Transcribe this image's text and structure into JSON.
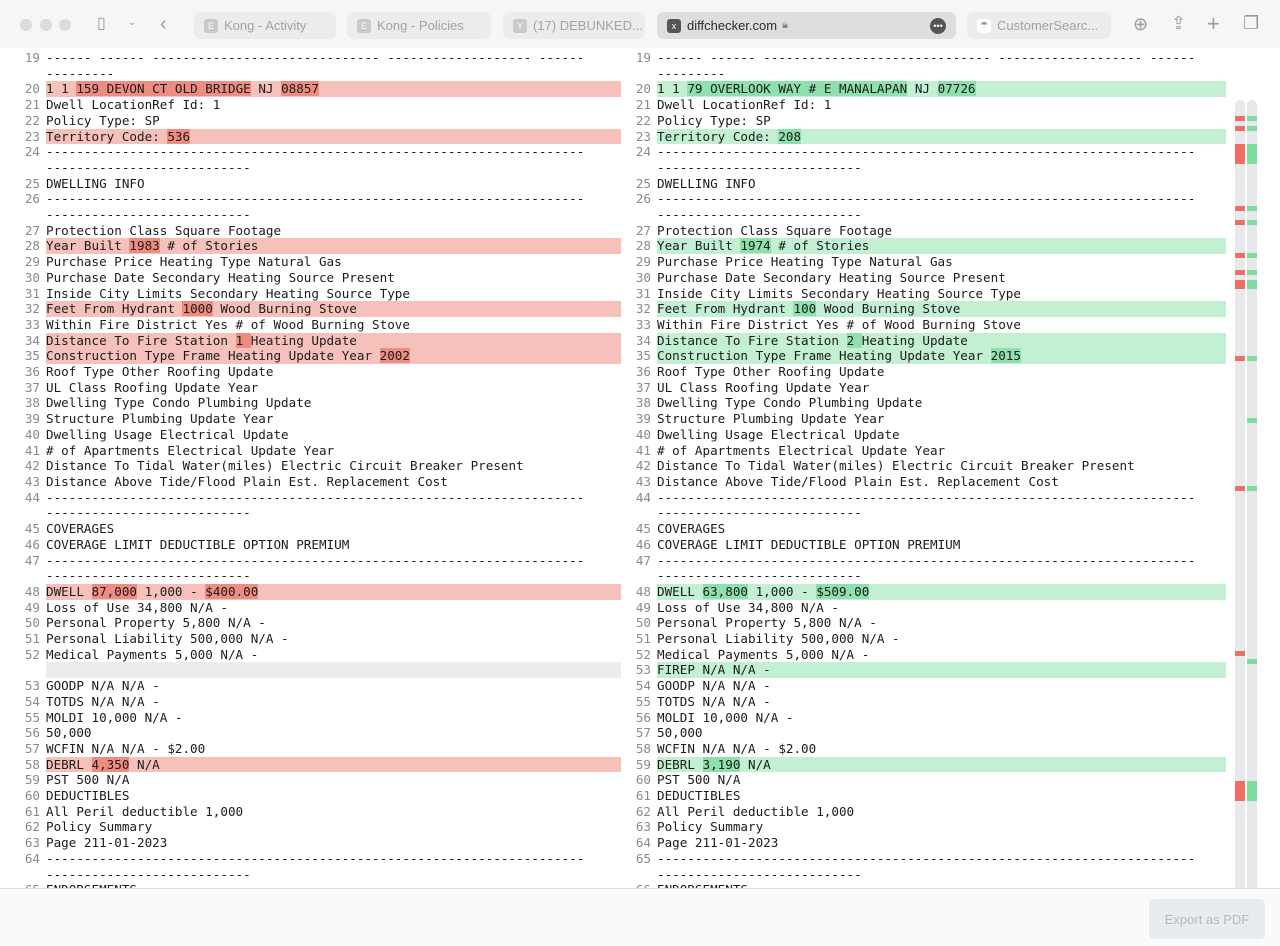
{
  "browser": {
    "tabs": [
      {
        "label": "Kong - Activity",
        "favicon": "E"
      },
      {
        "label": "Kong - Policies",
        "favicon": "E"
      },
      {
        "label": "(17) DEBUNKED...",
        "favicon": "Y"
      },
      {
        "label": "diffchecker.com",
        "favicon": "x",
        "active": true
      },
      {
        "label": "CustomerSearc...",
        "favicon": "☂"
      }
    ]
  },
  "colors": {
    "removed": "#f7c1bb",
    "removed_strong": "#ef8c82",
    "added": "#c3f0d2",
    "added_strong": "#8ee0ad"
  },
  "left": [
    {
      "n": "19",
      "segs": [
        [
          "------ ------ ------------------------------ ------------------- ---------------",
          0
        ]
      ]
    },
    {
      "n": "20",
      "t": "del",
      "segs": [
        [
          "1 1 ",
          0
        ],
        [
          "159 DEVON CT OLD BRIDGE",
          1
        ],
        [
          " NJ ",
          0
        ],
        [
          "08857",
          1
        ]
      ]
    },
    {
      "n": "21",
      "segs": [
        [
          "Dwell LocationRef Id: 1",
          0
        ]
      ]
    },
    {
      "n": "22",
      "segs": [
        [
          "Policy Type: SP",
          0
        ]
      ]
    },
    {
      "n": "23",
      "t": "del",
      "segs": [
        [
          "Territory Code: ",
          0
        ],
        [
          "536",
          1
        ]
      ]
    },
    {
      "n": "24",
      "segs": [
        [
          "--------------------------------------------------------------------------------------------------",
          0
        ]
      ]
    },
    {
      "n": "25",
      "segs": [
        [
          "DWELLING INFO",
          0
        ]
      ]
    },
    {
      "n": "26",
      "segs": [
        [
          "--------------------------------------------------------------------------------------------------",
          0
        ]
      ]
    },
    {
      "n": "27",
      "segs": [
        [
          "Protection Class Square Footage",
          0
        ]
      ]
    },
    {
      "n": "28",
      "t": "del",
      "segs": [
        [
          "Year Built ",
          0
        ],
        [
          "1983",
          1
        ],
        [
          " # of Stories",
          0
        ]
      ]
    },
    {
      "n": "29",
      "segs": [
        [
          "Purchase Price Heating Type Natural Gas",
          0
        ]
      ]
    },
    {
      "n": "30",
      "segs": [
        [
          "Purchase Date Secondary Heating Source Present",
          0
        ]
      ]
    },
    {
      "n": "31",
      "segs": [
        [
          "Inside City Limits Secondary Heating Source Type",
          0
        ]
      ]
    },
    {
      "n": "32",
      "t": "del",
      "segs": [
        [
          "Feet From Hydrant ",
          0
        ],
        [
          "1000",
          1
        ],
        [
          " Wood Burning Stove",
          0
        ]
      ]
    },
    {
      "n": "33",
      "segs": [
        [
          "Within Fire District Yes # of Wood Burning Stove",
          0
        ]
      ]
    },
    {
      "n": "34",
      "t": "del",
      "segs": [
        [
          "Distance To Fire Station ",
          0
        ],
        [
          "1 ",
          1
        ],
        [
          "Heating Update",
          0
        ]
      ]
    },
    {
      "n": "35",
      "t": "del",
      "segs": [
        [
          "Construction Type Frame Heating Update Year ",
          0
        ],
        [
          "2002",
          1
        ]
      ]
    },
    {
      "n": "36",
      "segs": [
        [
          "Roof Type Other Roofing Update",
          0
        ]
      ]
    },
    {
      "n": "37",
      "segs": [
        [
          "UL Class Roofing Update Year",
          0
        ]
      ]
    },
    {
      "n": "38",
      "segs": [
        [
          "Dwelling Type Condo Plumbing Update",
          0
        ]
      ]
    },
    {
      "n": "39",
      "segs": [
        [
          "Structure Plumbing Update Year",
          0
        ]
      ]
    },
    {
      "n": "40",
      "segs": [
        [
          "Dwelling Usage Electrical Update",
          0
        ]
      ]
    },
    {
      "n": "41",
      "segs": [
        [
          "# of Apartments Electrical Update Year",
          0
        ]
      ]
    },
    {
      "n": "42",
      "segs": [
        [
          "Distance To Tidal Water(miles) Electric Circuit Breaker Present",
          0
        ]
      ]
    },
    {
      "n": "43",
      "segs": [
        [
          "Distance Above Tide/Flood Plain Est. Replacement Cost",
          0
        ]
      ]
    },
    {
      "n": "44",
      "segs": [
        [
          "--------------------------------------------------------------------------------------------------",
          0
        ]
      ]
    },
    {
      "n": "45",
      "segs": [
        [
          "COVERAGES",
          0
        ]
      ]
    },
    {
      "n": "46",
      "segs": [
        [
          "COVERAGE LIMIT DEDUCTIBLE OPTION PREMIUM",
          0
        ]
      ]
    },
    {
      "n": "47",
      "segs": [
        [
          "--------------------------------------------------------------------------------------------------",
          0
        ]
      ]
    },
    {
      "n": "48",
      "t": "del",
      "segs": [
        [
          "DWELL ",
          0
        ],
        [
          "87,000",
          1
        ],
        [
          " 1,000 - ",
          0
        ],
        [
          "$400.00",
          1
        ]
      ]
    },
    {
      "n": "49",
      "segs": [
        [
          "Loss of Use 34,800 N/A -",
          0
        ]
      ]
    },
    {
      "n": "50",
      "segs": [
        [
          "Personal Property 5,800 N/A -",
          0
        ]
      ]
    },
    {
      "n": "51",
      "segs": [
        [
          "Personal Liability 500,000 N/A -",
          0
        ]
      ]
    },
    {
      "n": "52",
      "segs": [
        [
          "Medical Payments 5,000 N/A -",
          0
        ]
      ]
    },
    {
      "n": "",
      "t": "empty",
      "segs": [
        [
          "",
          0
        ]
      ]
    },
    {
      "n": "53",
      "segs": [
        [
          "GOODP N/A N/A -",
          0
        ]
      ]
    },
    {
      "n": "54",
      "segs": [
        [
          "TOTDS N/A N/A -",
          0
        ]
      ]
    },
    {
      "n": "55",
      "segs": [
        [
          "MOLDI 10,000 N/A -",
          0
        ]
      ]
    },
    {
      "n": "56",
      "segs": [
        [
          "50,000",
          0
        ]
      ]
    },
    {
      "n": "57",
      "segs": [
        [
          "WCFIN N/A N/A - $2.00",
          0
        ]
      ]
    },
    {
      "n": "58",
      "t": "del",
      "segs": [
        [
          "DEBRL ",
          0
        ],
        [
          "4,350",
          1
        ],
        [
          " N/A",
          0
        ]
      ]
    },
    {
      "n": "59",
      "segs": [
        [
          "PST 500 N/A",
          0
        ]
      ]
    },
    {
      "n": "60",
      "segs": [
        [
          "DEDUCTIBLES",
          0
        ]
      ]
    },
    {
      "n": "61",
      "segs": [
        [
          "All Peril deductible 1,000",
          0
        ]
      ]
    },
    {
      "n": "62",
      "segs": [
        [
          "Policy Summary",
          0
        ]
      ]
    },
    {
      "n": "63",
      "segs": [
        [
          "Page 211-01-2023",
          0
        ]
      ]
    },
    {
      "n": "64",
      "segs": [
        [
          "--------------------------------------------------------------------------------------------------",
          0
        ]
      ]
    },
    {
      "n": "65",
      "segs": [
        [
          "ENDORSEMENTS",
          0
        ]
      ]
    }
  ],
  "right": [
    {
      "n": "19",
      "segs": [
        [
          "------ ------ ------------------------------ ------------------- ---------------",
          0
        ]
      ]
    },
    {
      "n": "20",
      "t": "add",
      "segs": [
        [
          "1 1 ",
          0
        ],
        [
          "79 OVERLOOK WAY # E MANALAPAN",
          1
        ],
        [
          " NJ ",
          0
        ],
        [
          "07726",
          1
        ]
      ]
    },
    {
      "n": "21",
      "segs": [
        [
          "Dwell LocationRef Id: 1",
          0
        ]
      ]
    },
    {
      "n": "22",
      "segs": [
        [
          "Policy Type: SP",
          0
        ]
      ]
    },
    {
      "n": "23",
      "t": "add",
      "segs": [
        [
          "Territory Code: ",
          0
        ],
        [
          "208",
          1
        ]
      ]
    },
    {
      "n": "24",
      "segs": [
        [
          "--------------------------------------------------------------------------------------------------",
          0
        ]
      ]
    },
    {
      "n": "25",
      "segs": [
        [
          "DWELLING INFO",
          0
        ]
      ]
    },
    {
      "n": "26",
      "segs": [
        [
          "--------------------------------------------------------------------------------------------------",
          0
        ]
      ]
    },
    {
      "n": "27",
      "segs": [
        [
          "Protection Class Square Footage",
          0
        ]
      ]
    },
    {
      "n": "28",
      "t": "add",
      "segs": [
        [
          "Year Built ",
          0
        ],
        [
          "1974",
          1
        ],
        [
          " # of Stories",
          0
        ]
      ]
    },
    {
      "n": "29",
      "segs": [
        [
          "Purchase Price Heating Type Natural Gas",
          0
        ]
      ]
    },
    {
      "n": "30",
      "segs": [
        [
          "Purchase Date Secondary Heating Source Present",
          0
        ]
      ]
    },
    {
      "n": "31",
      "segs": [
        [
          "Inside City Limits Secondary Heating Source Type",
          0
        ]
      ]
    },
    {
      "n": "32",
      "t": "add",
      "segs": [
        [
          "Feet From Hydrant ",
          0
        ],
        [
          "100",
          1
        ],
        [
          " Wood Burning Stove",
          0
        ]
      ]
    },
    {
      "n": "33",
      "segs": [
        [
          "Within Fire District Yes # of Wood Burning Stove",
          0
        ]
      ]
    },
    {
      "n": "34",
      "t": "add",
      "segs": [
        [
          "Distance To Fire Station ",
          0
        ],
        [
          "2 ",
          1
        ],
        [
          "Heating Update",
          0
        ]
      ]
    },
    {
      "n": "35",
      "t": "add",
      "segs": [
        [
          "Construction Type Frame Heating Update Year ",
          0
        ],
        [
          "2015",
          1
        ]
      ]
    },
    {
      "n": "36",
      "segs": [
        [
          "Roof Type Other Roofing Update",
          0
        ]
      ]
    },
    {
      "n": "37",
      "segs": [
        [
          "UL Class Roofing Update Year",
          0
        ]
      ]
    },
    {
      "n": "38",
      "segs": [
        [
          "Dwelling Type Condo Plumbing Update",
          0
        ]
      ]
    },
    {
      "n": "39",
      "segs": [
        [
          "Structure Plumbing Update Year",
          0
        ]
      ]
    },
    {
      "n": "40",
      "segs": [
        [
          "Dwelling Usage Electrical Update",
          0
        ]
      ]
    },
    {
      "n": "41",
      "segs": [
        [
          "# of Apartments Electrical Update Year",
          0
        ]
      ]
    },
    {
      "n": "42",
      "segs": [
        [
          "Distance To Tidal Water(miles) Electric Circuit Breaker Present",
          0
        ]
      ]
    },
    {
      "n": "43",
      "segs": [
        [
          "Distance Above Tide/Flood Plain Est. Replacement Cost",
          0
        ]
      ]
    },
    {
      "n": "44",
      "segs": [
        [
          "--------------------------------------------------------------------------------------------------",
          0
        ]
      ]
    },
    {
      "n": "45",
      "segs": [
        [
          "COVERAGES",
          0
        ]
      ]
    },
    {
      "n": "46",
      "segs": [
        [
          "COVERAGE LIMIT DEDUCTIBLE OPTION PREMIUM",
          0
        ]
      ]
    },
    {
      "n": "47",
      "segs": [
        [
          "--------------------------------------------------------------------------------------------------",
          0
        ]
      ]
    },
    {
      "n": "48",
      "t": "add",
      "segs": [
        [
          "DWELL ",
          0
        ],
        [
          "63,800",
          1
        ],
        [
          " 1,000 - ",
          0
        ],
        [
          "$509.00",
          1
        ]
      ]
    },
    {
      "n": "49",
      "segs": [
        [
          "Loss of Use 34,800 N/A -",
          0
        ]
      ]
    },
    {
      "n": "50",
      "segs": [
        [
          "Personal Property 5,800 N/A -",
          0
        ]
      ]
    },
    {
      "n": "51",
      "segs": [
        [
          "Personal Liability 500,000 N/A -",
          0
        ]
      ]
    },
    {
      "n": "52",
      "segs": [
        [
          "Medical Payments 5,000 N/A -",
          0
        ]
      ]
    },
    {
      "n": "53",
      "t": "add",
      "segs": [
        [
          "FIREP N/A N/A -",
          0
        ]
      ]
    },
    {
      "n": "54",
      "segs": [
        [
          "GOODP N/A N/A -",
          0
        ]
      ]
    },
    {
      "n": "55",
      "segs": [
        [
          "TOTDS N/A N/A -",
          0
        ]
      ]
    },
    {
      "n": "56",
      "segs": [
        [
          "MOLDI 10,000 N/A -",
          0
        ]
      ]
    },
    {
      "n": "57",
      "segs": [
        [
          "50,000",
          0
        ]
      ]
    },
    {
      "n": "58",
      "segs": [
        [
          "WCFIN N/A N/A - $2.00",
          0
        ]
      ]
    },
    {
      "n": "59",
      "t": "add",
      "segs": [
        [
          "DEBRL ",
          0
        ],
        [
          "3,190",
          1
        ],
        [
          " N/A",
          0
        ]
      ]
    },
    {
      "n": "60",
      "segs": [
        [
          "PST 500 N/A",
          0
        ]
      ]
    },
    {
      "n": "61",
      "segs": [
        [
          "DEDUCTIBLES",
          0
        ]
      ]
    },
    {
      "n": "62",
      "segs": [
        [
          "All Peril deductible 1,000",
          0
        ]
      ]
    },
    {
      "n": "63",
      "segs": [
        [
          "Policy Summary",
          0
        ]
      ]
    },
    {
      "n": "64",
      "segs": [
        [
          "Page 211-01-2023",
          0
        ]
      ]
    },
    {
      "n": "65",
      "segs": [
        [
          "--------------------------------------------------------------------------------------------------",
          0
        ]
      ]
    },
    {
      "n": "66",
      "segs": [
        [
          "ENDORSEMENTS",
          0
        ]
      ]
    }
  ],
  "footer": {
    "export_label": "Export as PDF"
  }
}
